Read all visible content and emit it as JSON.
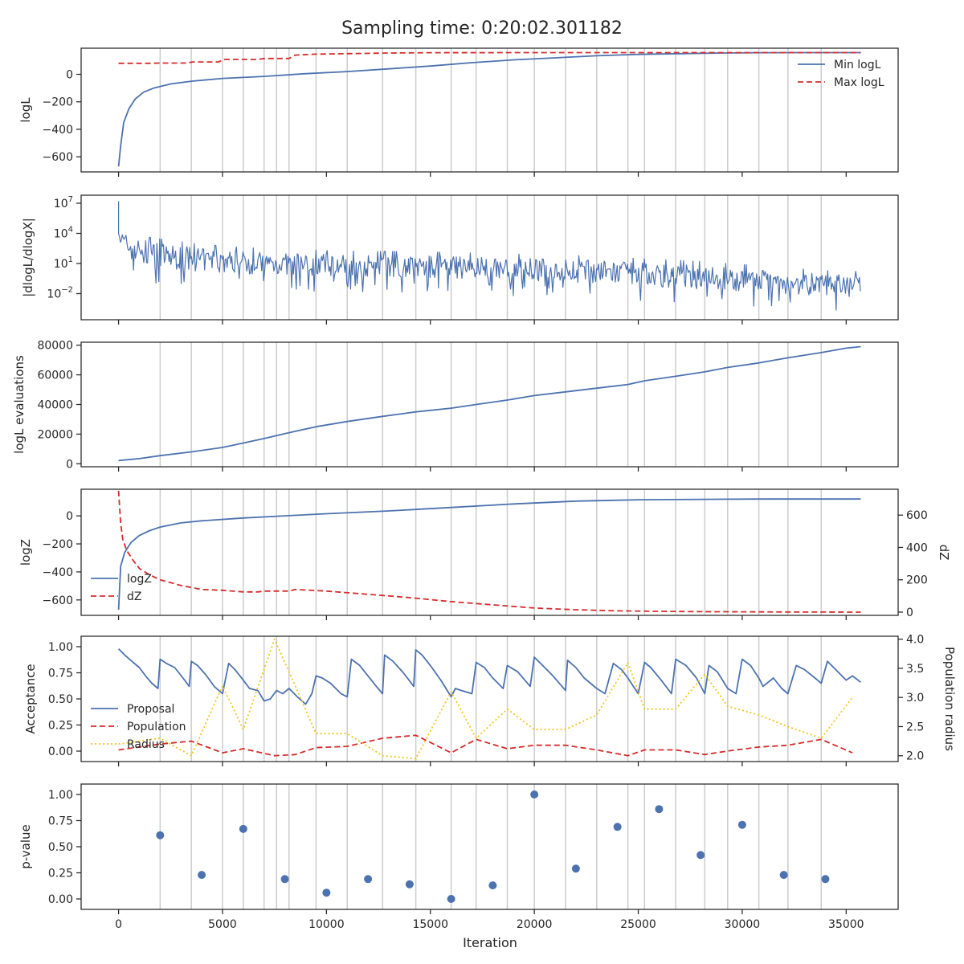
{
  "figure": {
    "title": "Sampling time: 0:20:02.301182",
    "xlabel": "Iteration",
    "x_ticks": [
      0,
      5000,
      10000,
      15000,
      20000,
      25000,
      30000,
      35000
    ],
    "x_tick_labels": [
      "0",
      "5000",
      "10000",
      "15000",
      "20000",
      "25000",
      "30000",
      "35000"
    ],
    "xlim": [
      -1800,
      37500
    ],
    "colors": {
      "blue": "#4c72b0",
      "red": "#d62b2b",
      "yellow": "#f5c518",
      "grid": "#cccccc",
      "axis": "#262626"
    }
  },
  "chart_data": [
    {
      "type": "line",
      "id": "logL",
      "ylabel": "logL",
      "ylim": [
        -710,
        190
      ],
      "y_ticks": [
        0,
        -200,
        -400,
        -600
      ],
      "y_tick_labels": [
        "0",
        "−200",
        "−400",
        "−600"
      ],
      "legend": {
        "placement": "top-right",
        "entries": [
          "Min logL",
          "Max logL"
        ]
      },
      "series": [
        {
          "name": "Min logL",
          "color": "blue",
          "style": "solid",
          "x": [
            0,
            100,
            250,
            500,
            800,
            1200,
            1700,
            2500,
            3500,
            5000,
            7000,
            9000,
            11000,
            13000,
            15000,
            17000,
            19000,
            21000,
            23000,
            25000,
            27000,
            29000,
            31000,
            33000,
            35700
          ],
          "y": [
            -670,
            -520,
            -350,
            -250,
            -180,
            -130,
            -100,
            -70,
            -50,
            -30,
            -15,
            5,
            20,
            40,
            60,
            85,
            105,
            120,
            135,
            145,
            150,
            155,
            157,
            158,
            158
          ]
        },
        {
          "name": "Max logL",
          "color": "red",
          "style": "dashed",
          "x": [
            0,
            1500,
            2000,
            3200,
            3600,
            4800,
            5100,
            6700,
            7000,
            8200,
            8500,
            9500,
            11000,
            13000,
            15000,
            20000,
            25000,
            30000,
            35700
          ],
          "y": [
            80,
            80,
            82,
            82,
            90,
            90,
            108,
            108,
            115,
            115,
            140,
            147,
            150,
            155,
            157,
            158,
            158,
            158,
            158
          ]
        }
      ]
    },
    {
      "type": "line",
      "id": "dlogl",
      "ylabel": "|dlogL/dlogX|",
      "yscale": "log",
      "ylim_log10": [
        -4.6,
        7.8
      ],
      "y_ticks_log10": [
        7,
        4,
        1,
        -2
      ],
      "y_tick_exponents": [
        "7",
        "4",
        "1",
        "−2"
      ],
      "envelope": {
        "x": [
          0,
          100,
          300,
          700,
          1500,
          2500,
          4000,
          6000,
          8000,
          10000,
          12000,
          14000,
          16000,
          18000,
          20000,
          22000,
          24000,
          26000,
          28000,
          30000,
          32000,
          34000,
          35700
        ],
        "upper_log10": [
          7.2,
          4.8,
          4.4,
          4.0,
          3.6,
          3.3,
          2.9,
          2.6,
          2.4,
          2.3,
          2.2,
          2.2,
          2.1,
          2.0,
          1.9,
          1.8,
          1.6,
          1.4,
          1.2,
          0.9,
          0.6,
          0.3,
          0.2
        ],
        "lower_log10": [
          3.5,
          1.8,
          1.5,
          0.8,
          0.2,
          0.0,
          -0.2,
          -0.4,
          -0.5,
          -0.6,
          -0.7,
          -0.8,
          -0.9,
          -1.0,
          -1.1,
          -1.3,
          -1.5,
          -1.7,
          -2.0,
          -2.2,
          -2.4,
          -2.6,
          -2.7
        ]
      }
    },
    {
      "type": "line",
      "id": "evals",
      "ylabel": "logL evaluations",
      "ylim": [
        -2000,
        82000
      ],
      "y_ticks": [
        0,
        20000,
        40000,
        60000,
        80000
      ],
      "y_tick_labels": [
        "0",
        "20000",
        "40000",
        "60000",
        "80000"
      ],
      "series": [
        {
          "name": "",
          "color": "blue",
          "style": "solid",
          "x": [
            0,
            1000,
            2000,
            3500,
            5000,
            6000,
            7000,
            8200,
            9500,
            11000,
            12700,
            14300,
            16000,
            17200,
            18700,
            20000,
            21500,
            23000,
            24500,
            25300,
            26800,
            28200,
            29300,
            30800,
            32200,
            33800,
            35000,
            35700
          ],
          "y": [
            2200,
            3500,
            5500,
            8000,
            11000,
            14000,
            17000,
            21000,
            25000,
            28500,
            32000,
            35000,
            37500,
            40000,
            43000,
            46000,
            48500,
            51000,
            53500,
            56000,
            59000,
            62000,
            65000,
            68000,
            71500,
            75000,
            78000,
            79000
          ]
        }
      ]
    },
    {
      "type": "line",
      "id": "logZ",
      "ylabel": "logZ",
      "ylim": [
        -710,
        190
      ],
      "y_ticks": [
        0,
        -200,
        -400,
        -600
      ],
      "y_tick_labels": [
        "0",
        "−200",
        "−400",
        "−600"
      ],
      "y2label": "dZ",
      "y2lim": [
        -20,
        760
      ],
      "y2_ticks": [
        0,
        200,
        400,
        600
      ],
      "y2_tick_labels": [
        "0",
        "200",
        "400",
        "600"
      ],
      "legend": {
        "placement": "lower-left",
        "entries": [
          "logZ",
          "dZ"
        ]
      },
      "series": [
        {
          "name": "logZ",
          "color": "blue",
          "style": "solid",
          "axis": "left",
          "x": [
            0,
            100,
            300,
            600,
            1000,
            1500,
            2000,
            3000,
            4000,
            6000,
            8000,
            10000,
            13000,
            16000,
            19000,
            22000,
            25000,
            28000,
            31000,
            35700
          ],
          "y": [
            -670,
            -360,
            -260,
            -190,
            -140,
            -105,
            -80,
            -50,
            -35,
            -15,
            0,
            15,
            35,
            60,
            85,
            105,
            115,
            118,
            120,
            120
          ]
        },
        {
          "name": "dZ",
          "color": "red",
          "style": "dashed",
          "axis": "right",
          "x": [
            0,
            100,
            200,
            400,
            700,
            1000,
            1500,
            2000,
            3000,
            4000,
            5000,
            6000,
            6700,
            7000,
            7600,
            8200,
            8500,
            10000,
            12000,
            14000,
            16000,
            18000,
            20000,
            22000,
            24000,
            26000,
            28000,
            30000,
            32000,
            35700
          ],
          "y": [
            750,
            550,
            450,
            380,
            320,
            270,
            230,
            200,
            165,
            140,
            135,
            125,
            125,
            130,
            130,
            130,
            140,
            130,
            110,
            90,
            65,
            45,
            25,
            15,
            8,
            5,
            3,
            2,
            1,
            0
          ]
        }
      ]
    },
    {
      "type": "line",
      "id": "acceptance",
      "ylabel": "Acceptance",
      "ylim": [
        -0.1,
        1.1
      ],
      "y_ticks": [
        0,
        0.25,
        0.5,
        0.75,
        1.0
      ],
      "y_tick_labels": [
        "0.00",
        "0.25",
        "0.50",
        "0.75",
        "1.00"
      ],
      "y2label": "Population radius",
      "y2lim": [
        1.9,
        4.05
      ],
      "y2_ticks": [
        2.0,
        2.5,
        3.0,
        3.5,
        4.0
      ],
      "y2_tick_labels": [
        "2.0",
        "2.5",
        "3.0",
        "3.5",
        "4.0"
      ],
      "legend": {
        "placement": "lower-left",
        "entries": [
          "Proposal",
          "Population",
          "Radius"
        ]
      },
      "series": [
        {
          "name": "Proposal",
          "color": "blue",
          "style": "solid",
          "axis": "left",
          "x": [
            0,
            300,
            700,
            1000,
            1300,
            1600,
            1900,
            2000,
            2300,
            2700,
            3100,
            3400,
            3500,
            3800,
            4200,
            4600,
            5000,
            5300,
            5600,
            6000,
            6300,
            6700,
            7000,
            7300,
            7600,
            7900,
            8200,
            8600,
            9000,
            9300,
            9500,
            9800,
            10200,
            10700,
            11000,
            11200,
            11600,
            12000,
            12400,
            12700,
            12800,
            13200,
            13700,
            14200,
            14300,
            14600,
            15000,
            15500,
            16000,
            16200,
            16500,
            17000,
            17200,
            17600,
            18000,
            18500,
            18700,
            19200,
            19800,
            20000,
            20400,
            20900,
            21500,
            21600,
            22000,
            22400,
            23000,
            23400,
            23800,
            24200,
            24500,
            25000,
            25300,
            25600,
            26100,
            26600,
            26800,
            27300,
            27800,
            28200,
            28400,
            28800,
            29300,
            29700,
            30000,
            30400,
            30800,
            31000,
            31500,
            31900,
            32200,
            32600,
            33000,
            33500,
            33800,
            34100,
            34500,
            35000,
            35300,
            35700
          ],
          "y": [
            0.98,
            0.92,
            0.85,
            0.8,
            0.72,
            0.65,
            0.6,
            0.88,
            0.84,
            0.8,
            0.7,
            0.62,
            0.86,
            0.82,
            0.73,
            0.62,
            0.55,
            0.84,
            0.78,
            0.68,
            0.6,
            0.58,
            0.48,
            0.5,
            0.58,
            0.55,
            0.6,
            0.52,
            0.45,
            0.55,
            0.72,
            0.7,
            0.65,
            0.55,
            0.52,
            0.88,
            0.82,
            0.72,
            0.62,
            0.55,
            0.92,
            0.86,
            0.75,
            0.62,
            0.97,
            0.92,
            0.82,
            0.68,
            0.52,
            0.6,
            0.58,
            0.55,
            0.85,
            0.8,
            0.7,
            0.6,
            0.82,
            0.76,
            0.62,
            0.9,
            0.82,
            0.72,
            0.58,
            0.87,
            0.8,
            0.7,
            0.6,
            0.55,
            0.84,
            0.78,
            0.7,
            0.55,
            0.85,
            0.8,
            0.68,
            0.55,
            0.88,
            0.82,
            0.7,
            0.55,
            0.82,
            0.76,
            0.6,
            0.55,
            0.88,
            0.82,
            0.7,
            0.62,
            0.7,
            0.6,
            0.55,
            0.82,
            0.78,
            0.7,
            0.65,
            0.86,
            0.78,
            0.68,
            0.72,
            0.66
          ]
        },
        {
          "name": "Population",
          "color": "red",
          "style": "dashed",
          "axis": "right",
          "x": [
            0,
            2000,
            3500,
            5000,
            6000,
            7500,
            8500,
            9500,
            11000,
            12700,
            14300,
            16000,
            17200,
            18700,
            20000,
            21500,
            23000,
            24500,
            25300,
            26800,
            28200,
            29300,
            30800,
            32200,
            33800,
            35300
          ],
          "y": [
            2.1,
            2.2,
            2.25,
            2.05,
            2.12,
            2.0,
            2.02,
            2.14,
            2.16,
            2.3,
            2.35,
            2.05,
            2.28,
            2.12,
            2.18,
            2.18,
            2.1,
            2.0,
            2.1,
            2.1,
            2.02,
            2.08,
            2.15,
            2.18,
            2.28,
            2.05
          ]
        },
        {
          "name": "Radius",
          "color": "yellow",
          "style": "dotted",
          "axis": "right",
          "x": [
            0,
            2000,
            3500,
            5000,
            6000,
            7500,
            8500,
            9500,
            11000,
            12700,
            14300,
            16000,
            17200,
            18700,
            20000,
            21500,
            23000,
            24500,
            25300,
            26800,
            28200,
            29300,
            30800,
            32200,
            33800,
            35300
          ],
          "y": [
            2.2,
            2.3,
            2.0,
            3.2,
            2.45,
            4.0,
            3.2,
            2.38,
            2.38,
            2.0,
            1.95,
            3.1,
            2.3,
            2.8,
            2.45,
            2.45,
            2.7,
            3.6,
            2.8,
            2.8,
            3.4,
            2.85,
            2.7,
            2.5,
            2.3,
            3.0
          ]
        }
      ]
    },
    {
      "type": "scatter",
      "id": "pvalue",
      "ylabel": "p-value",
      "ylim": [
        -0.1,
        1.1
      ],
      "y_ticks": [
        0,
        0.25,
        0.5,
        0.75,
        1.0
      ],
      "y_tick_labels": [
        "0.00",
        "0.25",
        "0.50",
        "0.75",
        "1.00"
      ],
      "series": [
        {
          "name": "",
          "color": "blue",
          "x": [
            2000,
            4000,
            6000,
            8000,
            10000,
            12000,
            14000,
            16000,
            18000,
            20000,
            22000,
            24000,
            26000,
            28000,
            30000,
            32000,
            34000
          ],
          "y": [
            0.61,
            0.23,
            0.67,
            0.19,
            0.06,
            0.19,
            0.14,
            0.0,
            0.13,
            1.0,
            0.29,
            0.69,
            0.86,
            0.42,
            0.71,
            0.23,
            0.19
          ]
        }
      ]
    }
  ],
  "vertical_lines_x": [
    2000,
    3500,
    5000,
    6000,
    7000,
    7600,
    8200,
    9500,
    11000,
    12700,
    14300,
    16000,
    17200,
    18700,
    20000,
    21500,
    23000,
    24500,
    25300,
    26800,
    28200,
    29300,
    30800,
    32200,
    33800
  ]
}
